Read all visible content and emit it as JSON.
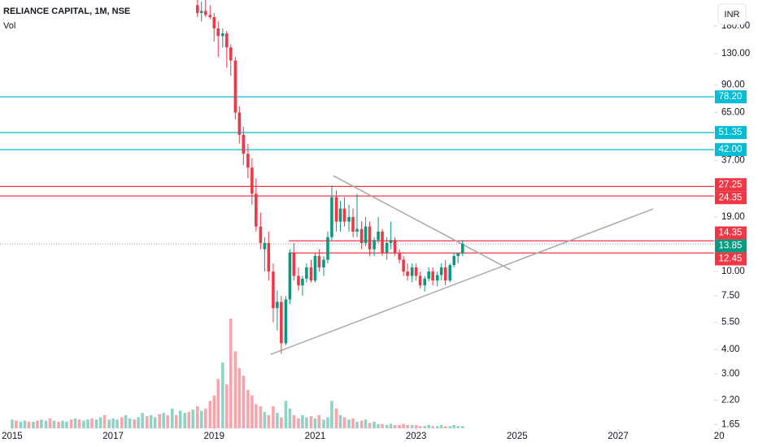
{
  "header": {
    "symbol": "RELIANCE CAPITAL, 1M, NSE",
    "currency": "INR"
  },
  "chart_data": {
    "type": "candlestick",
    "x": [
      2015.0,
      2015.08,
      2015.17,
      2015.25,
      2015.33,
      2015.42,
      2015.5,
      2015.58,
      2015.67,
      2015.75,
      2015.83,
      2015.92,
      2016.0,
      2016.08,
      2016.17,
      2016.25,
      2016.33,
      2016.42,
      2016.5,
      2016.58,
      2016.67,
      2016.75,
      2016.83,
      2016.92,
      2017.0,
      2017.08,
      2017.17,
      2017.25,
      2017.33,
      2017.42,
      2017.5,
      2017.58,
      2017.67,
      2017.75,
      2017.83,
      2017.92,
      2018.0,
      2018.08,
      2018.17,
      2018.25,
      2018.33,
      2018.42,
      2018.5,
      2018.58,
      2018.67,
      2018.75,
      2018.83,
      2018.92,
      2019.0,
      2019.08,
      2019.17,
      2019.25,
      2019.33,
      2019.42,
      2019.5,
      2019.58,
      2019.67,
      2019.75,
      2019.83,
      2019.92,
      2020.0,
      2020.08,
      2020.17,
      2020.25,
      2020.33,
      2020.42,
      2020.5,
      2020.58,
      2020.67,
      2020.75,
      2020.83,
      2020.92,
      2021.0,
      2021.08,
      2021.17,
      2021.25,
      2021.33,
      2021.42,
      2021.5,
      2021.58,
      2021.67,
      2021.75,
      2021.83,
      2021.92,
      2022.0,
      2022.08,
      2022.17,
      2022.25,
      2022.33,
      2022.42,
      2022.5,
      2022.58,
      2022.67,
      2022.75,
      2022.83,
      2022.92,
      2023.0,
      2023.08,
      2023.17,
      2023.25,
      2023.33,
      2023.42,
      2023.5,
      2023.58,
      2023.67,
      2023.75,
      2023.83,
      2023.92
    ],
    "open": [
      null,
      null,
      null,
      null,
      null,
      null,
      null,
      null,
      null,
      null,
      null,
      null,
      null,
      null,
      null,
      null,
      null,
      null,
      null,
      null,
      null,
      null,
      null,
      null,
      null,
      null,
      null,
      null,
      null,
      null,
      null,
      null,
      null,
      null,
      null,
      null,
      null,
      null,
      null,
      null,
      null,
      null,
      null,
      null,
      230,
      210,
      215,
      205,
      200,
      175,
      160,
      165,
      140,
      120,
      65,
      50,
      40,
      34,
      25,
      17,
      13,
      14,
      10,
      6.5,
      7,
      4.3,
      7.2,
      12.5,
      9.5,
      8.5,
      9.2,
      10.5,
      9,
      12,
      10.5,
      11.5,
      15,
      24,
      18,
      21,
      18,
      19,
      16,
      16.5,
      14,
      17,
      13,
      14.5,
      16,
      12.5,
      14,
      14.5,
      12.5,
      11.5,
      10,
      9.5,
      10.5,
      9.5,
      8.5,
      9.2,
      10,
      9,
      9.6,
      10.5,
      9,
      10.8,
      12,
      12.4
    ],
    "high": [
      null,
      null,
      null,
      null,
      null,
      null,
      null,
      null,
      null,
      null,
      null,
      null,
      null,
      null,
      null,
      null,
      null,
      null,
      null,
      null,
      null,
      null,
      null,
      null,
      null,
      null,
      null,
      null,
      null,
      null,
      null,
      null,
      null,
      null,
      null,
      null,
      null,
      null,
      null,
      null,
      null,
      null,
      null,
      null,
      260,
      240,
      245,
      230,
      210,
      190,
      175,
      170,
      145,
      125,
      70,
      55,
      45,
      38,
      30,
      20,
      15,
      16,
      11,
      8,
      7.5,
      7.5,
      13,
      14,
      10.5,
      9.5,
      11,
      11.5,
      12.5,
      13,
      12,
      16,
      27.5,
      26,
      23,
      24,
      22,
      21,
      25,
      18,
      19,
      18,
      15,
      19,
      16.5,
      15,
      18,
      15,
      13,
      12,
      11,
      11,
      11,
      10,
      9.5,
      10.5,
      10.5,
      10,
      11,
      11.5,
      11,
      12.5,
      12.5,
      14.5
    ],
    "low": [
      null,
      null,
      null,
      null,
      null,
      null,
      null,
      null,
      null,
      null,
      null,
      null,
      null,
      null,
      null,
      null,
      null,
      null,
      null,
      null,
      null,
      null,
      null,
      null,
      null,
      null,
      null,
      null,
      null,
      null,
      null,
      null,
      null,
      null,
      null,
      null,
      null,
      null,
      null,
      null,
      null,
      null,
      null,
      null,
      200,
      190,
      200,
      195,
      150,
      125,
      140,
      110,
      100,
      60,
      45,
      35,
      30,
      22,
      16,
      13,
      10,
      9,
      5.5,
      5,
      3.8,
      4.2,
      6.8,
      9,
      8,
      7.5,
      8.8,
      8.8,
      8.8,
      10,
      9.5,
      11,
      14.5,
      16,
      16,
      17,
      16,
      15,
      15,
      13,
      13.5,
      12,
      12,
      14,
      12,
      11.5,
      13,
      12,
      11,
      9.5,
      9,
      8.8,
      9,
      8.2,
      7.9,
      8.9,
      8.5,
      8.4,
      9,
      8.5,
      8.8,
      10.5,
      11,
      12
    ],
    "close": [
      null,
      null,
      null,
      null,
      null,
      null,
      null,
      null,
      null,
      null,
      null,
      null,
      null,
      null,
      null,
      null,
      null,
      null,
      null,
      null,
      null,
      null,
      null,
      null,
      null,
      null,
      null,
      null,
      null,
      null,
      null,
      null,
      null,
      null,
      null,
      null,
      null,
      null,
      null,
      null,
      null,
      null,
      null,
      null,
      210,
      215,
      205,
      200,
      175,
      160,
      165,
      140,
      120,
      65,
      50,
      40,
      34,
      25,
      17,
      14,
      14,
      10,
      6.5,
      7,
      4.3,
      7.2,
      12.5,
      9.5,
      8.5,
      9.2,
      10.5,
      9,
      12,
      10.5,
      11.5,
      15,
      24,
      18,
      21,
      18,
      19,
      16,
      16.5,
      14,
      17,
      13,
      14.5,
      16,
      12.5,
      14,
      14.5,
      12.5,
      11.5,
      10,
      9.5,
      10.5,
      9.5,
      8.5,
      9.2,
      10,
      9,
      9.6,
      10.5,
      9,
      10.8,
      12,
      12.4,
      13.85
    ],
    "up_color": "#089981",
    "down_color": "#f23645",
    "volume": {
      "name": "Vol",
      "ylim": [
        0,
        100
      ],
      "values": [
        8,
        7,
        6,
        7,
        6,
        6,
        7,
        8,
        7,
        9,
        7,
        6,
        7,
        6,
        8,
        9,
        8,
        7,
        8,
        9,
        8,
        10,
        12,
        8,
        9,
        8,
        10,
        12,
        9,
        8,
        10,
        14,
        11,
        12,
        10,
        13,
        14,
        12,
        18,
        12,
        16,
        14,
        15,
        17,
        20,
        16,
        18,
        25,
        30,
        45,
        60,
        40,
        100,
        70,
        55,
        48,
        35,
        30,
        22,
        20,
        15,
        12,
        20,
        14,
        10,
        25,
        18,
        12,
        9,
        12,
        10,
        11,
        9,
        12,
        8,
        10,
        25,
        18,
        12,
        10,
        8,
        9,
        6,
        7,
        8,
        5,
        6,
        4,
        4,
        3,
        4,
        3,
        3,
        4,
        3,
        3,
        3,
        2,
        2,
        3,
        2,
        2,
        3,
        2,
        2,
        3,
        2,
        2
      ],
      "rising": [
        true,
        false,
        true,
        true,
        false,
        true,
        false,
        true,
        true,
        false,
        true,
        false,
        true,
        true,
        false,
        true,
        false,
        true,
        true,
        false,
        true,
        true,
        false,
        true,
        true,
        true,
        false,
        true,
        true,
        false,
        true,
        true,
        false,
        true,
        true,
        false,
        true,
        false,
        true,
        false,
        true,
        true,
        false,
        true,
        false,
        true,
        false,
        false,
        false,
        false,
        true,
        false,
        false,
        false,
        false,
        false,
        false,
        false,
        false,
        false,
        true,
        false,
        false,
        true,
        false,
        true,
        true,
        false,
        false,
        true,
        true,
        false,
        true,
        false,
        true,
        true,
        true,
        false,
        true,
        false,
        true,
        false,
        true,
        false,
        true,
        false,
        true,
        true,
        false,
        true,
        true,
        false,
        false,
        false,
        false,
        true,
        false,
        false,
        true,
        true,
        false,
        true,
        true,
        false,
        true,
        true,
        true,
        true
      ]
    },
    "log_scale": true,
    "grid": false,
    "xlim": [
      2014.76,
      2028.9
    ],
    "xticks": [
      2015,
      2017,
      2019,
      2021,
      2023,
      2025,
      2027,
      {
        "value": 2029,
        "label": "20"
      }
    ],
    "ylim": [
      1.58,
      244.5
    ],
    "yticks": [
      {
        "value": 180,
        "label": "180.00"
      },
      {
        "value": 130,
        "label": "130.00"
      },
      {
        "value": 90,
        "label": "90.00"
      },
      {
        "value": 65,
        "label": "65.00"
      },
      {
        "value": 37,
        "label": "37.00"
      },
      {
        "value": 19,
        "label": "19.00"
      },
      {
        "value": 10,
        "label": "10.00"
      },
      {
        "value": 7.5,
        "label": "7.50"
      },
      {
        "value": 5.5,
        "label": "5.50"
      },
      {
        "value": 4,
        "label": "4.00"
      },
      {
        "value": 3,
        "label": "3.00"
      },
      {
        "value": 2.2,
        "label": "2.20"
      },
      {
        "value": 1.65,
        "label": "1.65"
      }
    ],
    "levels": [
      {
        "value": 78.2,
        "label": "78.20",
        "color": "#00bcd4"
      },
      {
        "value": 51.35,
        "label": "51.35",
        "color": "#00bcd4"
      },
      {
        "value": 42,
        "label": "42.00",
        "color": "#00bcd4"
      },
      {
        "value": 27.25,
        "label": "27.25",
        "color": "#f23645"
      },
      {
        "value": 24.35,
        "label": "24.35",
        "color": "#f23645"
      },
      {
        "value": 14.35,
        "label": "14.35",
        "color": "#f23645",
        "x_start": 2020.48
      },
      {
        "value": 12.45,
        "label": "12.45",
        "color": "#f23645",
        "x_start": 2020.48
      }
    ],
    "current_price": {
      "value": 13.85,
      "label": "13.85",
      "color": "#089981"
    },
    "trendlines": [
      {
        "x": [
          2021.36,
          2024.87
        ],
        "y": [
          30.9,
          10.2
        ],
        "color": "#a8a8a8"
      },
      {
        "x": [
          2020.12,
          2027.69
        ],
        "y": [
          3.77,
          20.9
        ],
        "color": "#a8a8a8"
      }
    ]
  }
}
